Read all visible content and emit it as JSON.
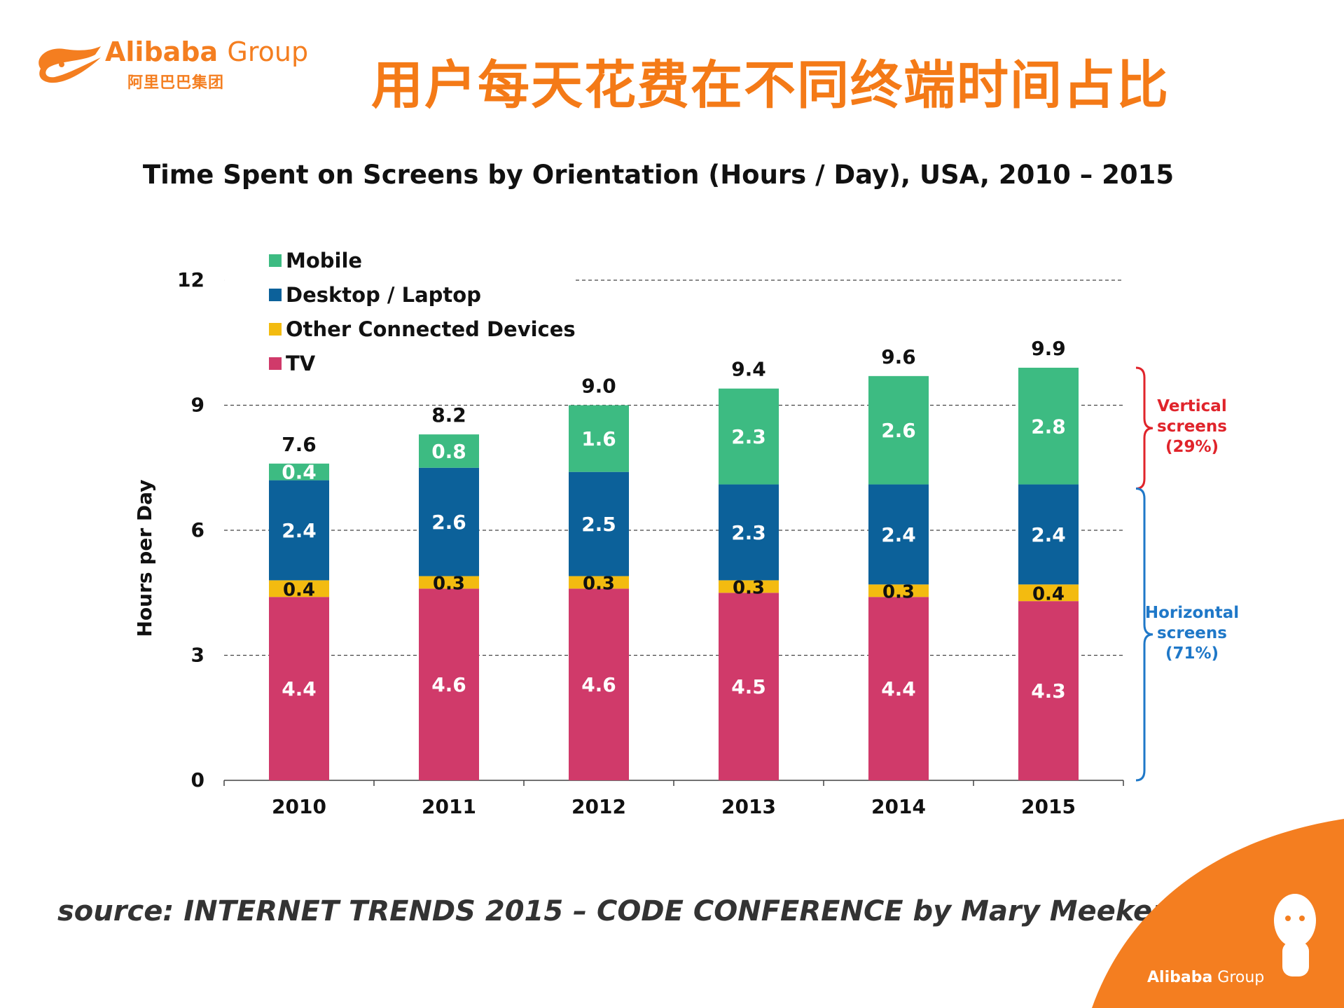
{
  "header": {
    "logo_word": "Alibaba",
    "logo_group": "Group",
    "logo_chinese": "阿里巴巴集团",
    "title": "用户每天花费在不同终端时间占比"
  },
  "footer": {
    "source": "source:  INTERNET TRENDS 2015 –  CODE CONFERENCE  by  Mary Meeker",
    "brand_word": "Alibaba",
    "brand_group": "Group"
  },
  "colors": {
    "brand_orange": "#f47e20",
    "title_orange": "#f47a17",
    "mobile": "#3dbb82",
    "desktop": "#0c619a",
    "other": "#f3bb10",
    "tv": "#d03a6a",
    "vertical_note": "#e0242b",
    "horizontal_note": "#1f78c8"
  },
  "chart_data": {
    "type": "bar",
    "stacked": true,
    "title": "Time Spent on Screens by Orientation (Hours / Day), USA, 2010 – 2015",
    "xlabel": "",
    "ylabel": "Hours per Day",
    "ylim": [
      0,
      12
    ],
    "yticks": [
      0,
      3,
      6,
      9,
      12
    ],
    "grid": "dashed horizontal",
    "legend_position": "top-left",
    "categories": [
      "2010",
      "2011",
      "2012",
      "2013",
      "2014",
      "2015"
    ],
    "series": [
      {
        "name": "TV",
        "color": "#d03a6a",
        "values": [
          4.4,
          4.6,
          4.6,
          4.5,
          4.4,
          4.3
        ]
      },
      {
        "name": "Other Connected Devices",
        "color": "#f3bb10",
        "values": [
          0.4,
          0.3,
          0.3,
          0.3,
          0.3,
          0.4
        ]
      },
      {
        "name": "Desktop / Laptop",
        "color": "#0c619a",
        "values": [
          2.4,
          2.6,
          2.5,
          2.3,
          2.4,
          2.4
        ]
      },
      {
        "name": "Mobile",
        "color": "#3dbb82",
        "values": [
          0.4,
          0.8,
          1.6,
          2.3,
          2.6,
          2.8
        ]
      }
    ],
    "legend_order": [
      "Mobile",
      "Desktop / Laptop",
      "Other Connected Devices",
      "TV"
    ],
    "totals": [
      "7.6",
      "8.2",
      "9.0",
      "9.4",
      "9.6",
      "9.9"
    ],
    "annotations": [
      {
        "lines": [
          "Vertical",
          "screens",
          "(29%)"
        ],
        "color": "#e0242b",
        "range": [
          7.0,
          9.9
        ]
      },
      {
        "lines": [
          "Horizontal",
          "screens",
          "(71%)"
        ],
        "color": "#1f78c8",
        "range": [
          0,
          7.0
        ]
      }
    ]
  }
}
